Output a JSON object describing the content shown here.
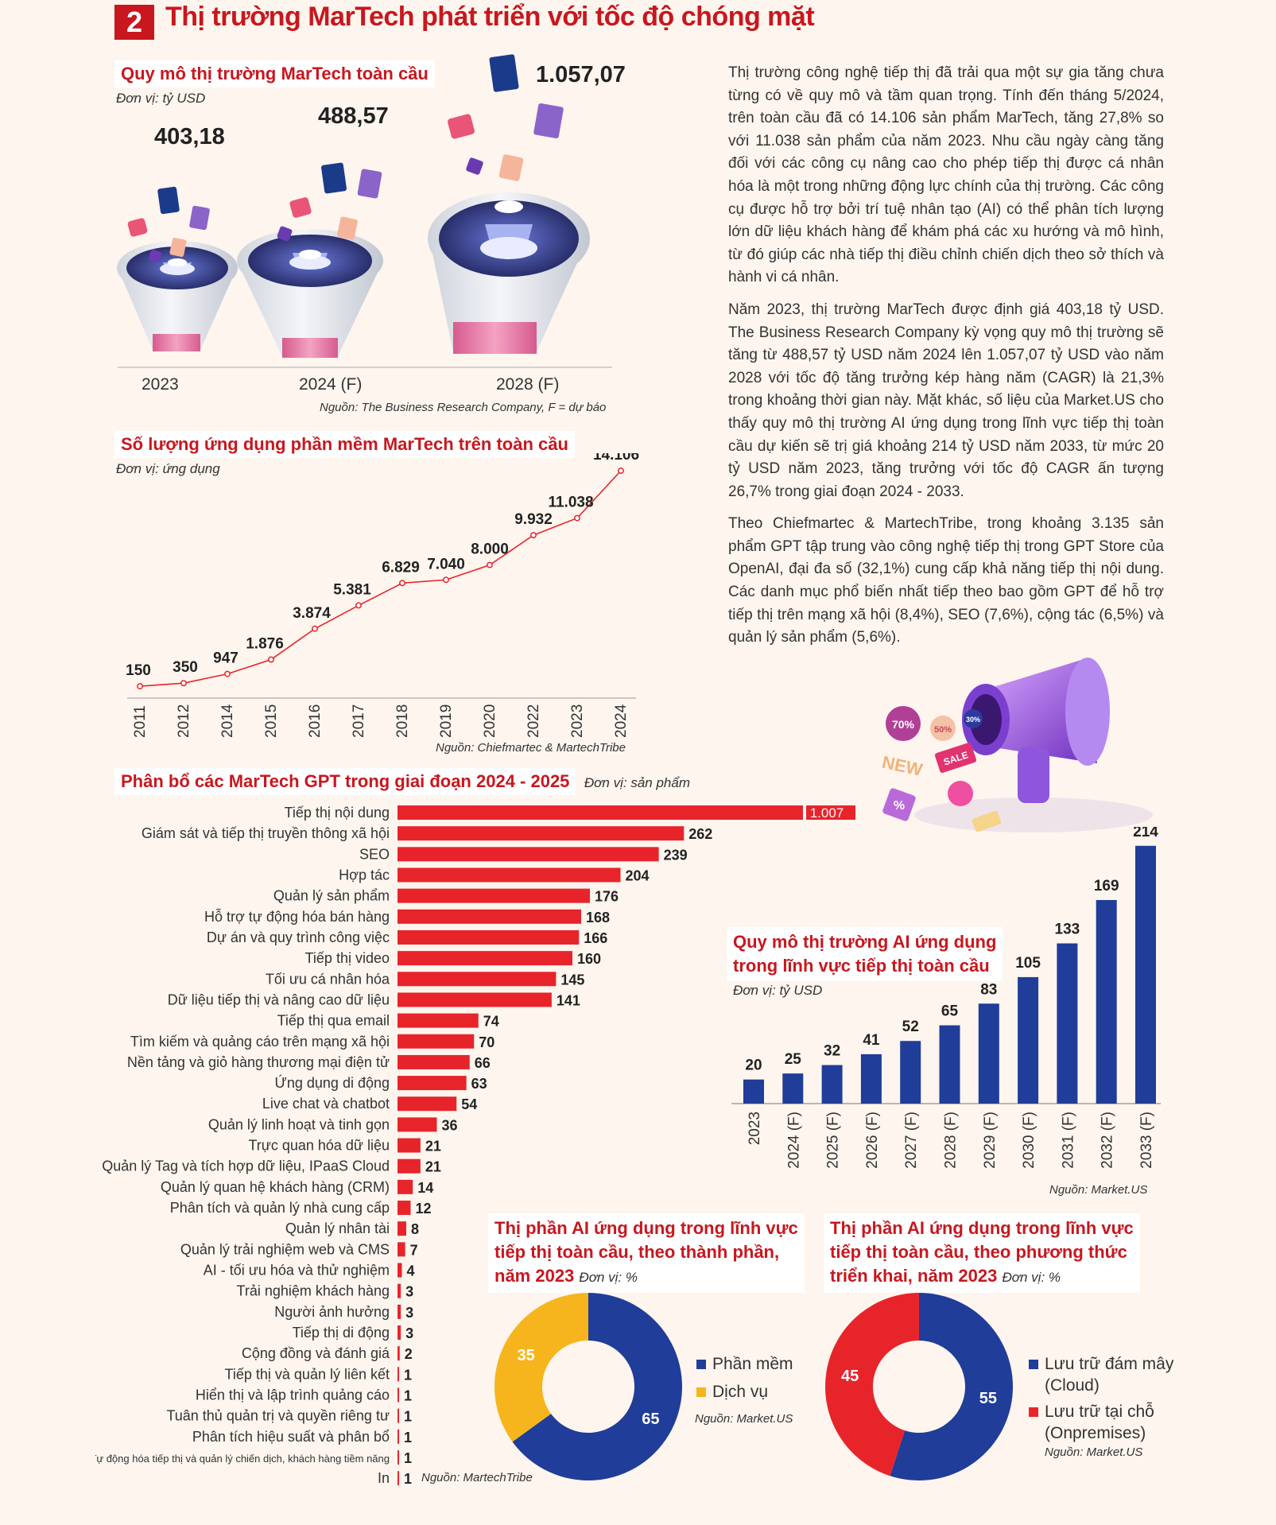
{
  "section": {
    "number": "2",
    "title": "Thị trường MarTech phát triển với tốc độ chóng mặt"
  },
  "market_size": {
    "title": "Quy mô thị trường MarTech toàn cầu",
    "unit": "Đơn vị: tỷ USD",
    "source": "Nguồn: The Business Research Company, F = dự báo"
  },
  "apps_count": {
    "title": "Số lượng ứng dụng phần mềm MarTech trên toàn cầu",
    "unit": "Đơn vị: ứng dụng",
    "source": "Nguồn: Chiefmartec & MartechTribe"
  },
  "gpt_dist": {
    "title": "Phân bổ các MarTech GPT trong giai đoạn 2024 - 2025",
    "unit": "Đơn vị: sản phẩm",
    "source": "Nguồn: MartechTribe"
  },
  "ai_market": {
    "title_line1": "Quy mô thị trường AI ứng dụng",
    "title_line2": "trong lĩnh vực tiếp thị toàn cầu",
    "unit": "Đơn vị: tỷ USD",
    "source": "Nguồn: Market.US"
  },
  "share_component": {
    "title_line1": "Thị phần AI ứng dụng trong lĩnh vực",
    "title_line2": "tiếp thị toàn cầu, theo thành phần,",
    "title_line3": "năm 2023",
    "unit": "Đơn vị: %",
    "source": "Nguồn: Market.US"
  },
  "share_deploy": {
    "title_line1": "Thị phần AI ứng dụng trong lĩnh vực",
    "title_line2": "tiếp thị toàn cầu, theo phương thức",
    "title_line3": "triển khai, năm 2023",
    "unit": "Đơn vị: %",
    "source": "Nguồn: Market.US"
  },
  "body": {
    "p1": "Thị trường công nghệ tiếp thị đã trải qua một sự gia tăng chưa từng có về quy mô và tầm quan trọng. Tính đến tháng 5/2024, trên toàn cầu đã có 14.106 sản phẩm MarTech, tăng 27,8% so với 11.038 sản phẩm của năm 2023. Nhu cầu ngày càng tăng đối với các công cụ nâng cao cho phép tiếp thị được cá nhân hóa là một trong những động lực chính của thị trường. Các công cụ được hỗ trợ bởi trí tuệ nhân tạo (AI) có thể phân tích lượng lớn dữ liệu khách hàng để khám phá các xu hướng và mô hình, từ đó giúp các nhà tiếp thị điều chỉnh chiến dịch theo sở thích và hành vi cá nhân.",
    "p2": "Năm 2023, thị trường MarTech được định giá 403,18 tỷ USD. The Business Research Company kỳ vọng quy mô thị trường sẽ tăng từ 488,57 tỷ USD năm 2024 lên 1.057,07 tỷ USD vào năm 2028 với tốc độ tăng trưởng kép hàng năm (CAGR) là 21,3% trong khoảng thời gian này. Mặt khác, số liệu của Market.US cho thấy quy mô thị trường AI ứng dụng trong lĩnh vực tiếp thị toàn cầu dự kiến sẽ trị giá khoảng 214 tỷ USD năm 2033, từ mức 20 tỷ USD năm 2023, tăng trưởng với tốc độ CAGR ấn tượng 26,7% trong giai đoạn 2024 - 2033.",
    "p3": "Theo Chiefmartec & MartechTribe, trong khoảng 3.135 sản phẩm GPT tập trung vào công nghệ tiếp thị trong GPT Store của OpenAI, đại đa số (32,1%) cung cấp khả năng tiếp thị nội dung. Các danh mục phổ biến nhất tiếp theo bao gồm GPT để hỗ trợ tiếp thị trên mạng xã hội (8,4%), SEO (7,6%), cộng tác (6,5%) và quản lý sản phẩm (5,6%)."
  },
  "megaphone_tags": [
    "70%",
    "50%",
    "30%",
    "NEW",
    "SALE",
    "%"
  ],
  "colors": {
    "red": "#e8242b",
    "title_red": "#c8171e",
    "blue": "#1f3d99",
    "yellow": "#f6b51c",
    "bg": "#fdf5ee"
  },
  "chart_data": [
    {
      "id": "market_size",
      "type": "bar",
      "categories": [
        "2023",
        "2024 (F)",
        "2028 (F)"
      ],
      "labels": [
        "403,18",
        "488,57",
        "1.057,07"
      ],
      "values": [
        403.18,
        488.57,
        1057.07
      ],
      "title": "Quy mô thị trường MarTech toàn cầu"
    },
    {
      "id": "apps_count",
      "type": "line",
      "x": [
        "2011",
        "2012",
        "2014",
        "2015",
        "2016",
        "2017",
        "2018",
        "2019",
        "2020",
        "2022",
        "2023",
        "2024"
      ],
      "values": [
        150,
        350,
        947,
        1876,
        3874,
        5381,
        6829,
        7040,
        8000,
        9932,
        11038,
        14106
      ],
      "labels": [
        "150",
        "350",
        "947",
        "1.876",
        "3.874",
        "5.381",
        "6.829",
        "7.040",
        "8.000",
        "9.932",
        "11.038",
        "14.106"
      ],
      "title": "Số lượng ứng dụng phần mềm MarTech trên toàn cầu"
    },
    {
      "id": "gpt_dist",
      "type": "bar",
      "orientation": "horizontal",
      "categories": [
        "Tiếp thị nội dung",
        "Giám sát và tiếp thị truyền thông xã hội",
        "SEO",
        "Hợp tác",
        "Quản lý sản phẩm",
        "Hỗ trợ tự động hóa bán hàng",
        "Dự án và quy trình công việc",
        "Tiếp thị video",
        "Tối ưu cá nhân hóa",
        "Dữ liệu tiếp thị và nâng cao dữ liệu",
        "Tiếp thị qua email",
        "Tìm kiếm  và  quảng cáo trên mạng xã hội",
        "Nền tảng và giỏ hàng thương mại điện tử",
        "Ứng dụng di động",
        "Live chat  và  chatbot",
        "Quản lý linh hoạt và tinh gọn",
        "Trực quan hóa dữ liệu",
        "Quản lý Tag  và  tích hợp dữ liệu, IPaaS Cloud",
        "Quản lý quan hệ khách hàng (CRM)",
        "Phân tích và quản lý nhà cung cấp",
        "Quản lý nhân tài",
        "Quản lý trải nghiệm web và CMS",
        "AI - tối ưu hóa  và  thử nghiệm",
        "Trải nghiệm khách hàng",
        "Người ảnh hưởng",
        "Tiếp thị di động",
        "Cộng đồng  và đánh giá",
        "Tiếp thị và quản lý liên kết",
        "Hiển thị  và lập trình quảng cáo",
        "Tuân thủ quản trị và quyền riêng tư",
        "Phân tích hiệu suất và phân bổ",
        "Tự động hóa tiếp thị  và quản lý chiến dịch, khách hàng tiềm năng",
        "In"
      ],
      "values": [
        1007,
        262,
        239,
        204,
        176,
        168,
        166,
        160,
        145,
        141,
        74,
        70,
        66,
        63,
        54,
        36,
        21,
        21,
        14,
        12,
        8,
        7,
        4,
        3,
        3,
        3,
        2,
        1,
        1,
        1,
        1,
        1,
        1
      ],
      "labels": [
        "1.007",
        "262",
        "239",
        "204",
        "176",
        "168",
        "166",
        "160",
        "145",
        "141",
        "74",
        "70",
        "66",
        "63",
        "54",
        "36",
        "21",
        "21",
        "14",
        "12",
        "8",
        "7",
        "4",
        "3",
        "3",
        "3",
        "2",
        "1",
        "1",
        "1",
        "1",
        "1",
        "1"
      ],
      "axis_break": true,
      "title": "Phân bổ các MarTech GPT trong giai đoạn 2024 - 2025"
    },
    {
      "id": "ai_market",
      "type": "bar",
      "categories": [
        "2023",
        "2024 (F)",
        "2025 (F)",
        "2026 (F)",
        "2027 (F)",
        "2028 (F)",
        "2029 (F)",
        "2030 (F)",
        "2031 (F)",
        "2032 (F)",
        "2033 (F)"
      ],
      "values": [
        20,
        25,
        32,
        41,
        52,
        65,
        83,
        105,
        133,
        169,
        214
      ],
      "title": "Quy mô thị trường AI ứng dụng trong lĩnh vực tiếp thị toàn cầu"
    },
    {
      "id": "share_component",
      "type": "pie",
      "donut": true,
      "series": [
        {
          "name": "Phần mềm",
          "value": 65
        },
        {
          "name": "Dịch vụ",
          "value": 35
        }
      ]
    },
    {
      "id": "share_deploy",
      "type": "pie",
      "donut": true,
      "series": [
        {
          "name": "Lưu trữ đám mây (Cloud)",
          "value": 55
        },
        {
          "name": "Lưu trữ tại chỗ (Onpremises)",
          "value": 45
        }
      ],
      "legend_lines": [
        [
          "Lưu trữ đám mây",
          "(Cloud)"
        ],
        [
          "Lưu trữ tại chỗ",
          "(Onpremises)"
        ]
      ]
    }
  ]
}
